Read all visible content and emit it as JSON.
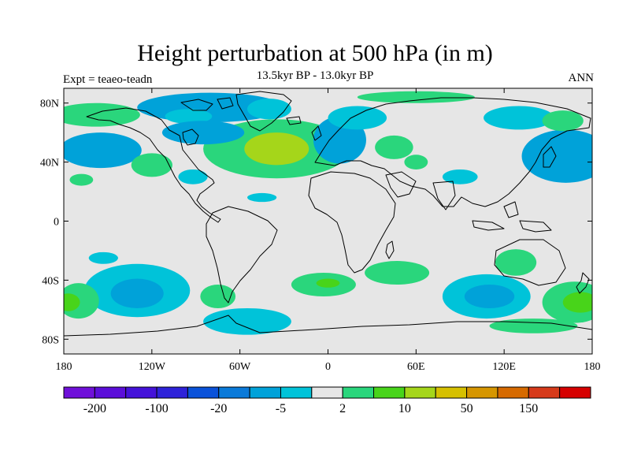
{
  "header": {
    "title": "Height perturbation at 500 hPa (in m)",
    "subtitle": "13.5kyr BP - 13.0kyr BP",
    "left_label": "Expt = teaeo-teadn",
    "right_label": "ANN"
  },
  "map": {
    "projection": "cylindrical-equidistant",
    "lon_range": [
      -180,
      180
    ],
    "lat_range": [
      -90,
      90
    ],
    "background_color": "#e6e6e6",
    "x_ticks": [
      {
        "lon": -180,
        "label": "180"
      },
      {
        "lon": -120,
        "label": "120W"
      },
      {
        "lon": -60,
        "label": "60W"
      },
      {
        "lon": 0,
        "label": "0"
      },
      {
        "lon": 60,
        "label": "60E"
      },
      {
        "lon": 120,
        "label": "120E"
      },
      {
        "lon": 180,
        "label": "180"
      }
    ],
    "y_ticks": [
      {
        "lat": 80,
        "label": "80N"
      },
      {
        "lat": 40,
        "label": "40N"
      },
      {
        "lat": 0,
        "label": "0"
      },
      {
        "lat": -40,
        "label": "40S"
      },
      {
        "lat": -80,
        "label": "80S"
      }
    ],
    "anomaly_blobs": [
      {
        "lon": -35,
        "lat": 49,
        "rx": 50,
        "ry": 20,
        "color": "#2ad67c"
      },
      {
        "lon": -35,
        "lat": 49,
        "rx": 22,
        "ry": 11,
        "color": "#a5d61a"
      },
      {
        "lon": -80,
        "lat": 77,
        "rx": 50,
        "ry": 10,
        "color": "#00a2d9"
      },
      {
        "lon": -95,
        "lat": 71,
        "rx": 16,
        "ry": 5,
        "color": "#00c3d9"
      },
      {
        "lon": -85,
        "lat": 60,
        "rx": 28,
        "ry": 8,
        "color": "#00a2d9"
      },
      {
        "lon": -155,
        "lat": 48,
        "rx": 28,
        "ry": 12,
        "color": "#00a2d9"
      },
      {
        "lon": -158,
        "lat": 72,
        "rx": 30,
        "ry": 8,
        "color": "#2ad67c"
      },
      {
        "lon": -168,
        "lat": 28,
        "rx": 8,
        "ry": 4,
        "color": "#2ad67c"
      },
      {
        "lon": -120,
        "lat": 38,
        "rx": 14,
        "ry": 8,
        "color": "#2ad67c"
      },
      {
        "lon": -92,
        "lat": 30,
        "rx": 10,
        "ry": 5,
        "color": "#00c3d9"
      },
      {
        "lon": -40,
        "lat": 76,
        "rx": 15,
        "ry": 7,
        "color": "#00c3d9"
      },
      {
        "lon": -45,
        "lat": 16,
        "rx": 10,
        "ry": 3,
        "color": "#00c3d9"
      },
      {
        "lon": 8,
        "lat": 55,
        "rx": 18,
        "ry": 16,
        "color": "#00a2d9"
      },
      {
        "lon": 20,
        "lat": 70,
        "rx": 20,
        "ry": 8,
        "color": "#00c3d9"
      },
      {
        "lon": 45,
        "lat": 50,
        "rx": 13,
        "ry": 8,
        "color": "#2ad67c"
      },
      {
        "lon": 60,
        "lat": 40,
        "rx": 8,
        "ry": 5,
        "color": "#2ad67c"
      },
      {
        "lon": 90,
        "lat": 30,
        "rx": 12,
        "ry": 5,
        "color": "#00c3d9"
      },
      {
        "lon": 60,
        "lat": 84,
        "rx": 40,
        "ry": 4,
        "color": "#2ad67c"
      },
      {
        "lon": 130,
        "lat": 70,
        "rx": 24,
        "ry": 8,
        "color": "#00c3d9"
      },
      {
        "lon": 162,
        "lat": 44,
        "rx": 30,
        "ry": 18,
        "color": "#00a2d9"
      },
      {
        "lon": 160,
        "lat": 68,
        "rx": 14,
        "ry": 7,
        "color": "#2ad67c"
      },
      {
        "lon": -153,
        "lat": -25,
        "rx": 10,
        "ry": 4,
        "color": "#00c3d9"
      },
      {
        "lon": -130,
        "lat": -47,
        "rx": 36,
        "ry": 18,
        "color": "#00c3d9"
      },
      {
        "lon": -130,
        "lat": -49,
        "rx": 18,
        "ry": 10,
        "color": "#00a2d9"
      },
      {
        "lon": -170,
        "lat": -54,
        "rx": 14,
        "ry": 12,
        "color": "#2ad67c"
      },
      {
        "lon": -177,
        "lat": -55,
        "rx": 8,
        "ry": 6,
        "color": "#48d41a"
      },
      {
        "lon": -75,
        "lat": -51,
        "rx": 12,
        "ry": 8,
        "color": "#2ad67c"
      },
      {
        "lon": -55,
        "lat": -68,
        "rx": 30,
        "ry": 9,
        "color": "#00c3d9"
      },
      {
        "lon": -3,
        "lat": -43,
        "rx": 22,
        "ry": 8,
        "color": "#2ad67c"
      },
      {
        "lon": 0,
        "lat": -42,
        "rx": 8,
        "ry": 3,
        "color": "#48d41a"
      },
      {
        "lon": 47,
        "lat": -35,
        "rx": 22,
        "ry": 8,
        "color": "#2ad67c"
      },
      {
        "lon": 108,
        "lat": -51,
        "rx": 30,
        "ry": 15,
        "color": "#00c3d9"
      },
      {
        "lon": 110,
        "lat": -51,
        "rx": 17,
        "ry": 8,
        "color": "#00a2d9"
      },
      {
        "lon": 128,
        "lat": -28,
        "rx": 14,
        "ry": 9,
        "color": "#2ad67c"
      },
      {
        "lon": 168,
        "lat": -55,
        "rx": 22,
        "ry": 14,
        "color": "#2ad67c"
      },
      {
        "lon": 172,
        "lat": -55,
        "rx": 12,
        "ry": 7,
        "color": "#48d41a"
      },
      {
        "lon": 140,
        "lat": -71,
        "rx": 30,
        "ry": 5,
        "color": "#2ad67c"
      }
    ],
    "coastline_color": "#000000"
  },
  "colorbar": {
    "colors": [
      "#6f10d9",
      "#5b0ed9",
      "#4412d9",
      "#2e22d9",
      "#0a52d9",
      "#0a7ad9",
      "#00a2d9",
      "#00c3d9",
      "#e6e6e6",
      "#2ad67c",
      "#48d41a",
      "#a5d61a",
      "#d6c000",
      "#d69600",
      "#d66a00",
      "#d63a1a",
      "#d60000"
    ],
    "labels": [
      {
        "boundary": 1,
        "label": "-200"
      },
      {
        "boundary": 3,
        "label": "-100"
      },
      {
        "boundary": 5,
        "label": "-20"
      },
      {
        "boundary": 7,
        "label": "-5"
      },
      {
        "boundary": 9,
        "label": "2"
      },
      {
        "boundary": 11,
        "label": "10"
      },
      {
        "boundary": 13,
        "label": "50"
      },
      {
        "boundary": 15,
        "label": "150"
      }
    ]
  }
}
